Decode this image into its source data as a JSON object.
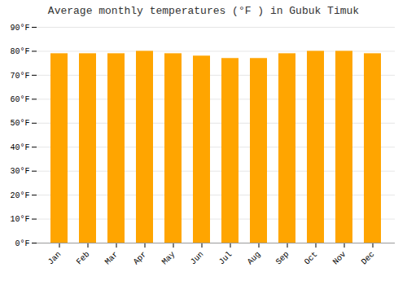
{
  "chart_data": {
    "type": "bar",
    "title": "Average monthly temperatures (°F ) in Gubuk Timuk",
    "categories": [
      "Jan",
      "Feb",
      "Mar",
      "Apr",
      "May",
      "Jun",
      "Jul",
      "Aug",
      "Sep",
      "Oct",
      "Nov",
      "Dec"
    ],
    "values": [
      79,
      79,
      79,
      80,
      79,
      78,
      77,
      77,
      79,
      80,
      80,
      79
    ],
    "color": "#FFA500",
    "ylim": [
      0,
      90
    ],
    "yticks": [
      {
        "value": 0,
        "label": "0°F"
      },
      {
        "value": 10,
        "label": "10°F"
      },
      {
        "value": 20,
        "label": "20°F"
      },
      {
        "value": 30,
        "label": "30°F"
      },
      {
        "value": 40,
        "label": "40°F"
      },
      {
        "value": 50,
        "label": "50°F"
      },
      {
        "value": 60,
        "label": "60°F"
      },
      {
        "value": 70,
        "label": "70°F"
      },
      {
        "value": 80,
        "label": "80°F"
      },
      {
        "value": 90,
        "label": "90°F"
      }
    ],
    "grid": true
  }
}
